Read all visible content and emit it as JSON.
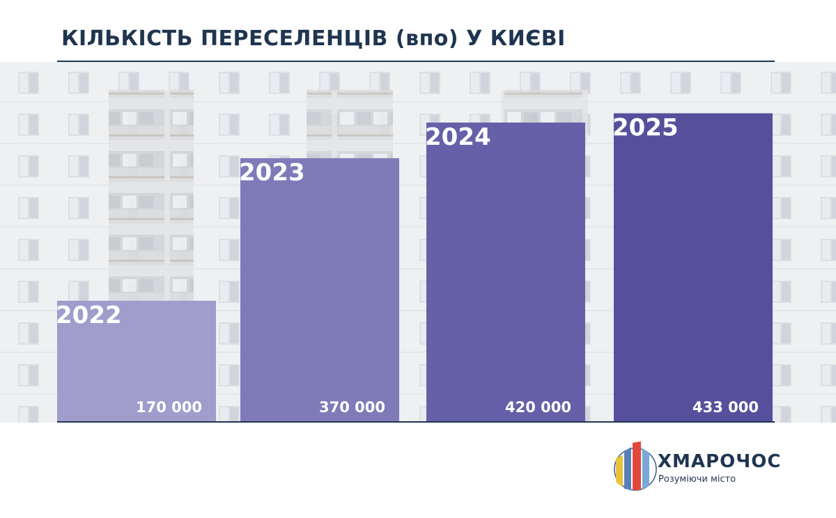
{
  "header": {
    "title_main": "КІЛЬКІСТЬ ПЕРЕСЕЛЕНЦІВ",
    "title_paren": "(впо)",
    "title_tail": "У КИЄВІ"
  },
  "chart_data": {
    "type": "bar",
    "categories": [
      "2022",
      "2023",
      "2024",
      "2025"
    ],
    "values": [
      170000,
      370000,
      420000,
      433000
    ],
    "value_labels": [
      "170 000",
      "370 000",
      "420 000",
      "433 000"
    ],
    "title": "КІЛЬКІСТЬ ПЕРЕСЕЛЕНЦІВ (впо) У КИЄВІ",
    "xlabel": "",
    "ylabel": "",
    "ylim": [
      0,
      500000
    ],
    "grid": false,
    "bar_colors": [
      "#a09ccc",
      "#7f7ab8",
      "#6660a8",
      "#56509c"
    ]
  },
  "brand": {
    "name": "ХМАРОЧОС",
    "slogan": "Розуміючи місто"
  },
  "colors": {
    "title": "#1f3550",
    "bar_text": "#ffffff"
  }
}
